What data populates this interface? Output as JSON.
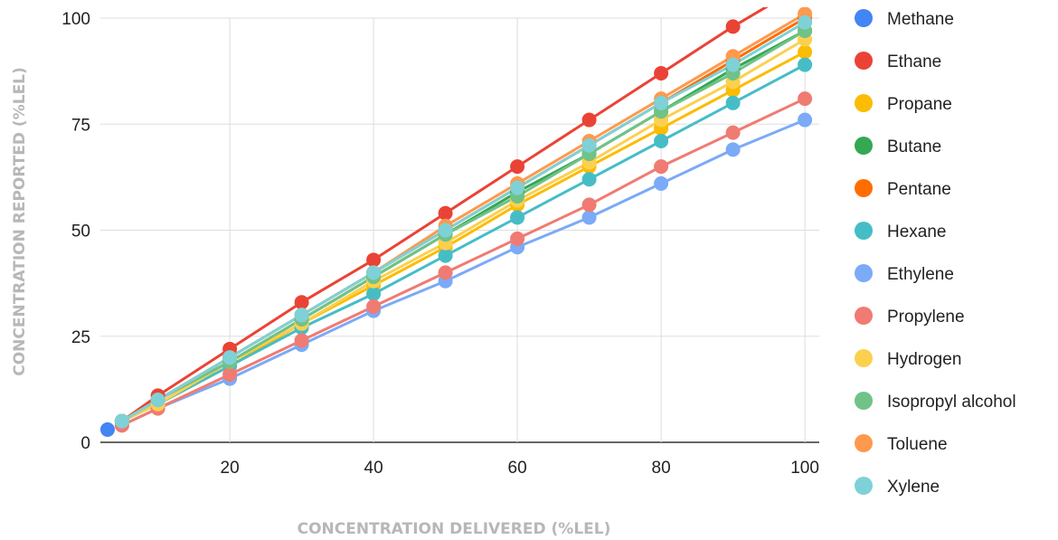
{
  "chart_data": {
    "type": "line",
    "title": "",
    "xlabel": "CONCENTRATION DELIVERED (%LEL)",
    "ylabel": "CONCENTRATION REPORTED  (%LEL)",
    "xlim": [
      2,
      102
    ],
    "ylim": [
      0,
      100
    ],
    "x_ticks": [
      20,
      40,
      60,
      80,
      100
    ],
    "y_ticks": [
      0,
      25,
      50,
      75,
      100
    ],
    "grid": true,
    "legend_position": "right",
    "series": [
      {
        "name": "Methane",
        "color": "#4285F4",
        "x": [
          3
        ],
        "y": [
          3
        ]
      },
      {
        "name": "Ethane",
        "color": "#EA4335",
        "x": [
          5,
          10,
          20,
          30,
          40,
          50,
          60,
          70,
          80,
          90,
          100
        ],
        "y": [
          5,
          11,
          22,
          33,
          43,
          54,
          65,
          76,
          87,
          98,
          108
        ]
      },
      {
        "name": "Propane",
        "color": "#FBBC04",
        "x": [
          5,
          10,
          20,
          30,
          40,
          50,
          60,
          70,
          80,
          90,
          100
        ],
        "y": [
          5,
          9,
          18,
          28,
          37,
          46,
          56,
          65,
          74,
          83,
          92
        ]
      },
      {
        "name": "Butane",
        "color": "#34A853",
        "x": [
          5,
          10,
          20,
          30,
          40,
          50,
          60,
          70,
          80,
          90,
          100
        ],
        "y": [
          5,
          10,
          19,
          29,
          39,
          49,
          59,
          68,
          78,
          88,
          97
        ]
      },
      {
        "name": "Pentane",
        "color": "#FF6D01",
        "x": [
          5,
          10,
          20,
          30,
          40,
          50,
          60,
          70,
          80,
          90,
          100
        ],
        "y": [
          5,
          10,
          20,
          30,
          40,
          50,
          60,
          70,
          80,
          90,
          100
        ]
      },
      {
        "name": "Hexane",
        "color": "#46BDC6",
        "x": [
          5,
          10,
          20,
          30,
          40,
          50,
          60,
          70,
          80,
          90,
          100
        ],
        "y": [
          5,
          9,
          18,
          27,
          35,
          44,
          53,
          62,
          71,
          80,
          89
        ]
      },
      {
        "name": "Ethylene",
        "color": "#7BAAF7",
        "x": [
          5,
          10,
          20,
          30,
          40,
          50,
          60,
          70,
          80,
          90,
          100
        ],
        "y": [
          4,
          8,
          15,
          23,
          31,
          38,
          46,
          53,
          61,
          69,
          76
        ]
      },
      {
        "name": "Propylene",
        "color": "#F07B72",
        "x": [
          5,
          10,
          20,
          30,
          40,
          50,
          60,
          70,
          80,
          90,
          100
        ],
        "y": [
          4,
          8,
          16,
          24,
          32,
          40,
          48,
          56,
          65,
          73,
          81
        ]
      },
      {
        "name": "Hydrogen",
        "color": "#FCD04F",
        "x": [
          5,
          10,
          20,
          30,
          40,
          50,
          60,
          70,
          80,
          90,
          100
        ],
        "y": [
          5,
          9,
          19,
          28,
          38,
          47,
          57,
          66,
          76,
          85,
          95
        ]
      },
      {
        "name": "Isopropyl alcohol",
        "color": "#71C287",
        "x": [
          5,
          10,
          20,
          30,
          40,
          50,
          60,
          70,
          80,
          90,
          100
        ],
        "y": [
          5,
          10,
          19,
          29,
          39,
          49,
          58,
          68,
          78,
          87,
          97
        ]
      },
      {
        "name": "Toluene",
        "color": "#FF994D",
        "x": [
          5,
          10,
          20,
          30,
          40,
          50,
          60,
          70,
          80,
          90,
          100
        ],
        "y": [
          5,
          10,
          20,
          30,
          40,
          51,
          61,
          71,
          81,
          91,
          101
        ]
      },
      {
        "name": "Xylene",
        "color": "#7ED1D7",
        "x": [
          5,
          10,
          20,
          30,
          40,
          50,
          60,
          70,
          80,
          90,
          100
        ],
        "y": [
          5,
          10,
          20,
          30,
          40,
          50,
          60,
          70,
          80,
          89,
          99
        ]
      }
    ]
  }
}
